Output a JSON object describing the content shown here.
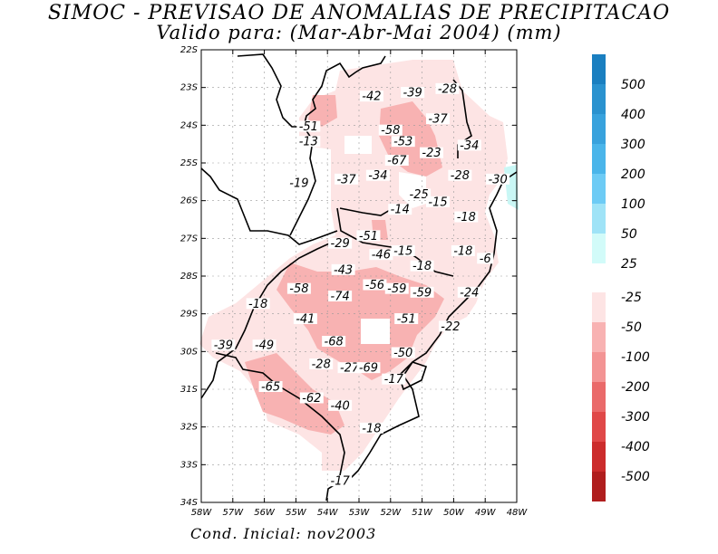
{
  "title": {
    "line1": "SIMOC - PREVISAO DE ANOMALIAS DE PRECIPITACAO",
    "line2": "Valido para: (Mar-Abr-Mai 2004) (mm)"
  },
  "footer": "Cond. Inicial: nov2003",
  "map": {
    "lat_ticks": [
      "22S",
      "23S",
      "24S",
      "25S",
      "26S",
      "27S",
      "28S",
      "29S",
      "30S",
      "31S",
      "32S",
      "33S",
      "34S"
    ],
    "lon_ticks": [
      "58W",
      "57W",
      "56W",
      "55W",
      "54W",
      "53W",
      "52W",
      "51W",
      "50W",
      "49W",
      "48W"
    ],
    "contour_labels": [
      {
        "text": "-42",
        "lon": -52.6,
        "lat": -23.3
      },
      {
        "text": "-39",
        "lon": -51.3,
        "lat": -23.2
      },
      {
        "text": "-28",
        "lon": -50.2,
        "lat": -23.1
      },
      {
        "text": "-37",
        "lon": -50.5,
        "lat": -23.9
      },
      {
        "text": "-51",
        "lon": -54.6,
        "lat": -24.1
      },
      {
        "text": "-58",
        "lon": -52.0,
        "lat": -24.2
      },
      {
        "text": "-13",
        "lon": -54.6,
        "lat": -24.5
      },
      {
        "text": "-53",
        "lon": -51.6,
        "lat": -24.5
      },
      {
        "text": "-34",
        "lon": -49.5,
        "lat": -24.6
      },
      {
        "text": "-23",
        "lon": -50.7,
        "lat": -24.8
      },
      {
        "text": "-67",
        "lon": -51.8,
        "lat": -25.0
      },
      {
        "text": "-28",
        "lon": -49.8,
        "lat": -25.4
      },
      {
        "text": "-30",
        "lon": -48.6,
        "lat": -25.5
      },
      {
        "text": "-37",
        "lon": -53.4,
        "lat": -25.5
      },
      {
        "text": "-34",
        "lon": -52.4,
        "lat": -25.4
      },
      {
        "text": "-19",
        "lon": -54.9,
        "lat": -25.6
      },
      {
        "text": "-25",
        "lon": -51.1,
        "lat": -25.9
      },
      {
        "text": "-15",
        "lon": -50.5,
        "lat": -26.1
      },
      {
        "text": "-14",
        "lon": -51.7,
        "lat": -26.3
      },
      {
        "text": "-18",
        "lon": -49.6,
        "lat": -26.5
      },
      {
        "text": "-51",
        "lon": -52.7,
        "lat": -27.0
      },
      {
        "text": "-29",
        "lon": -53.6,
        "lat": -27.2
      },
      {
        "text": "-46",
        "lon": -52.3,
        "lat": -27.5
      },
      {
        "text": "-15",
        "lon": -51.6,
        "lat": -27.4
      },
      {
        "text": "-18",
        "lon": -49.7,
        "lat": -27.4
      },
      {
        "text": "-6",
        "lon": -49.0,
        "lat": -27.6
      },
      {
        "text": "-18",
        "lon": -51.0,
        "lat": -27.8
      },
      {
        "text": "-43",
        "lon": -53.5,
        "lat": -27.9
      },
      {
        "text": "-56",
        "lon": -52.5,
        "lat": -28.3
      },
      {
        "text": "-59",
        "lon": -51.8,
        "lat": -28.4
      },
      {
        "text": "-59",
        "lon": -51.0,
        "lat": -28.5
      },
      {
        "text": "-24",
        "lon": -49.5,
        "lat": -28.5
      },
      {
        "text": "-58",
        "lon": -54.9,
        "lat": -28.4
      },
      {
        "text": "-74",
        "lon": -53.6,
        "lat": -28.6
      },
      {
        "text": "-18",
        "lon": -56.2,
        "lat": -28.8
      },
      {
        "text": "-41",
        "lon": -54.7,
        "lat": -29.2
      },
      {
        "text": "-51",
        "lon": -51.5,
        "lat": -29.2
      },
      {
        "text": "-22",
        "lon": -50.1,
        "lat": -29.4
      },
      {
        "text": "-68",
        "lon": -53.8,
        "lat": -29.8
      },
      {
        "text": "-39",
        "lon": -57.3,
        "lat": -29.9
      },
      {
        "text": "-49",
        "lon": -56.0,
        "lat": -29.9
      },
      {
        "text": "-50",
        "lon": -51.6,
        "lat": -30.1
      },
      {
        "text": "-28",
        "lon": -54.2,
        "lat": -30.4
      },
      {
        "text": "-27",
        "lon": -53.3,
        "lat": -30.5
      },
      {
        "text": "-69",
        "lon": -52.7,
        "lat": -30.5
      },
      {
        "text": "-17",
        "lon": -51.9,
        "lat": -30.8
      },
      {
        "text": "-65",
        "lon": -55.8,
        "lat": -31.0
      },
      {
        "text": "-62",
        "lon": -54.5,
        "lat": -31.3
      },
      {
        "text": "-40",
        "lon": -53.6,
        "lat": -31.5
      },
      {
        "text": "-18",
        "lon": -52.6,
        "lat": -32.1
      },
      {
        "text": "-17",
        "lon": -53.6,
        "lat": -33.5
      }
    ]
  },
  "colorbar": [
    {
      "label": "500",
      "color": "#1a7fc0"
    },
    {
      "label": "400",
      "color": "#2a92cf"
    },
    {
      "label": "300",
      "color": "#38a2dd"
    },
    {
      "label": "200",
      "color": "#4ab5ea"
    },
    {
      "label": "100",
      "color": "#6dcbf5"
    },
    {
      "label": "50",
      "color": "#9fe3f7"
    },
    {
      "label": "25",
      "color": "#d2fbf9"
    },
    {
      "label": "-25",
      "color": "#fde4e4"
    },
    {
      "label": "-50",
      "color": "#f8b2b2"
    },
    {
      "label": "-100",
      "color": "#f39494"
    },
    {
      "label": "-200",
      "color": "#ea6a6a"
    },
    {
      "label": "-300",
      "color": "#e04848"
    },
    {
      "label": "-400",
      "color": "#cc2c2c"
    },
    {
      "label": "-500",
      "color": "#b01e1e"
    }
  ],
  "colors": {
    "pale_pink": "#fde4e4",
    "light_red": "#f8b2b2",
    "cyan": "#c9f7f5"
  }
}
